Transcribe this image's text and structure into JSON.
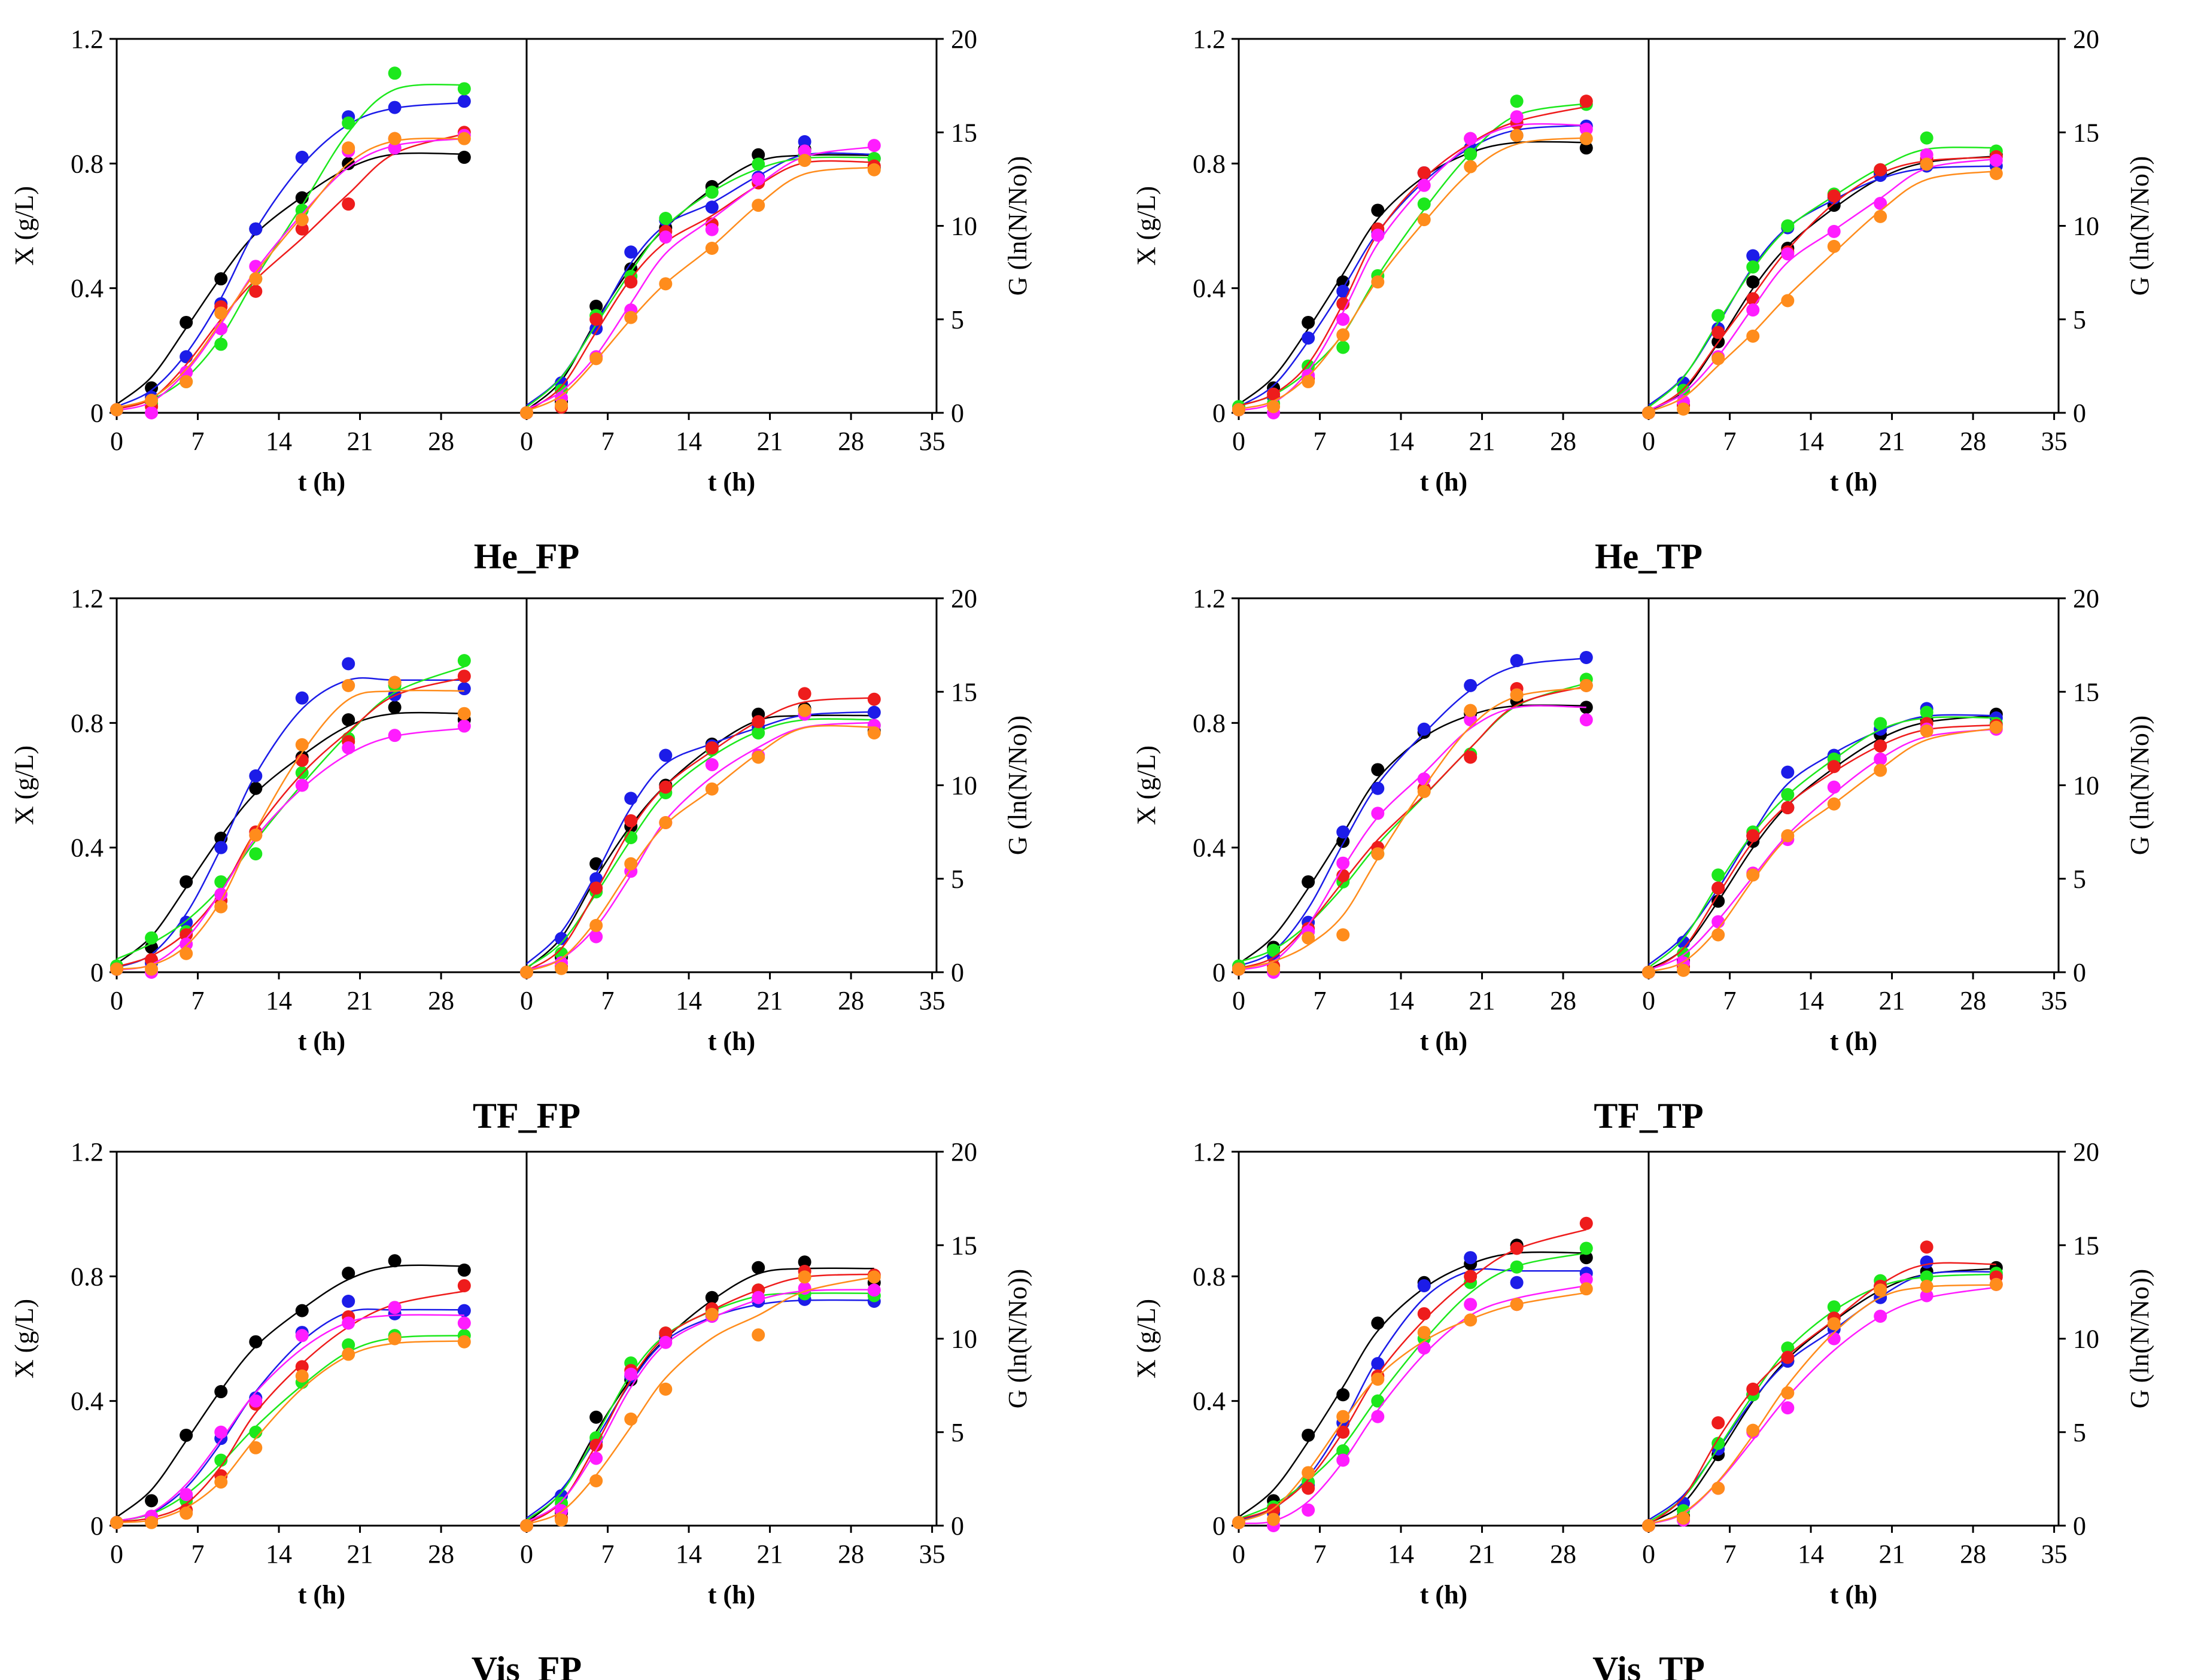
{
  "chart_data": {
    "type": "scatter",
    "layout": "3 rows x 2 columns of dual-panel plots",
    "x_ticks": [
      0,
      7,
      14,
      21,
      28,
      35
    ],
    "left_panel": {
      "xlabel": "t (h)",
      "ylabel": "X (g/L)",
      "ylim": [
        0,
        1.2
      ],
      "y_ticks": [
        "0",
        "0.4",
        "0.8",
        "1.2"
      ],
      "xlim": [
        0,
        35
      ]
    },
    "right_panel": {
      "xlabel": "t (h)",
      "ylabel": "G (ln(N/No))",
      "ylim": [
        0,
        20
      ],
      "y_ticks": [
        "0",
        "5",
        "10",
        "15",
        "20"
      ],
      "xlim": [
        0,
        35
      ]
    },
    "series_colors": {
      "red": "#ee1c1c",
      "green": "#1ce81c",
      "blue": "#1c1ce8",
      "magenta": "#ff1cff",
      "orange": "#ff8c1c",
      "black": "#000000"
    },
    "times": [
      0,
      3,
      6,
      9,
      12,
      16,
      20,
      24,
      30
    ],
    "panels": [
      {
        "title": "He_FP",
        "X": {
          "black": [
            0.01,
            0.08,
            0.29,
            0.43,
            0.59,
            0.69,
            0.8,
            0.85,
            0.82
          ],
          "blue": [
            0.01,
            0.05,
            0.18,
            0.35,
            0.59,
            0.82,
            0.95,
            0.98,
            1.0
          ],
          "green": [
            0.01,
            0.03,
            0.1,
            0.22,
            0.43,
            0.65,
            0.93,
            1.09,
            1.04
          ],
          "red": [
            0.01,
            0.02,
            0.13,
            0.34,
            0.39,
            0.59,
            0.67,
            0.88,
            0.9
          ],
          "magenta": [
            0.01,
            0.0,
            0.13,
            0.27,
            0.47,
            0.62,
            0.84,
            0.85,
            0.89
          ],
          "orange": [
            0.01,
            0.04,
            0.1,
            0.32,
            0.43,
            0.62,
            0.85,
            0.88,
            0.88
          ]
        },
        "G": {
          "black": [
            0.0,
            0.6,
            5.7,
            7.7,
            9.9,
            12.1,
            13.8,
            14.1,
            13.1
          ],
          "blue": [
            0.0,
            1.6,
            4.5,
            8.6,
            10.3,
            11.0,
            12.6,
            14.5,
            13.6
          ],
          "green": [
            0.0,
            1.2,
            5.2,
            7.3,
            10.4,
            11.8,
            13.3,
            13.8,
            13.6
          ],
          "red": [
            0.0,
            0.3,
            5.0,
            7.0,
            9.7,
            10.1,
            12.3,
            14.0,
            13.2
          ],
          "magenta": [
            0.0,
            0.8,
            3.0,
            5.5,
            9.4,
            9.8,
            12.5,
            14.0,
            14.3
          ],
          "orange": [
            0.0,
            0.4,
            2.9,
            5.1,
            6.9,
            8.8,
            11.1,
            13.5,
            13.0
          ]
        }
      },
      {
        "title": "He_TP",
        "X": {
          "black": [
            0.01,
            0.08,
            0.29,
            0.42,
            0.65,
            0.77,
            0.84,
            0.89,
            0.85
          ],
          "blue": [
            0.01,
            0.05,
            0.24,
            0.39,
            0.58,
            0.77,
            0.85,
            0.93,
            0.92
          ],
          "green": [
            0.02,
            0.03,
            0.15,
            0.21,
            0.44,
            0.67,
            0.83,
            1.0,
            0.99
          ],
          "red": [
            0.01,
            0.06,
            0.11,
            0.35,
            0.59,
            0.77,
            0.88,
            0.93,
            1.0
          ],
          "magenta": [
            0.01,
            0.0,
            0.12,
            0.3,
            0.57,
            0.73,
            0.88,
            0.95,
            0.91
          ],
          "orange": [
            0.01,
            0.02,
            0.1,
            0.25,
            0.42,
            0.62,
            0.79,
            0.89,
            0.88
          ]
        },
        "G": {
          "black": [
            0.0,
            0.4,
            3.8,
            7.0,
            8.8,
            11.1,
            12.8,
            13.5,
            13.8
          ],
          "blue": [
            0.0,
            1.6,
            4.5,
            8.4,
            9.9,
            11.5,
            12.7,
            13.2,
            13.2
          ],
          "green": [
            0.0,
            1.2,
            5.2,
            7.8,
            10.0,
            11.7,
            13.0,
            14.7,
            14.0
          ],
          "red": [
            0.0,
            0.4,
            4.3,
            6.1,
            8.6,
            11.6,
            13.0,
            13.6,
            13.7
          ],
          "magenta": [
            0.0,
            0.6,
            3.0,
            5.5,
            8.5,
            9.7,
            11.2,
            13.8,
            13.5
          ],
          "orange": [
            0.0,
            0.2,
            2.9,
            4.1,
            6.0,
            8.9,
            10.5,
            13.3,
            12.8
          ]
        }
      },
      {
        "title": "TF_FP",
        "X": {
          "black": [
            0.01,
            0.08,
            0.29,
            0.43,
            0.59,
            0.69,
            0.81,
            0.85,
            0.81
          ],
          "blue": [
            0.01,
            0.03,
            0.16,
            0.4,
            0.63,
            0.88,
            0.99,
            0.89,
            0.91
          ],
          "green": [
            0.02,
            0.11,
            0.13,
            0.29,
            0.38,
            0.64,
            0.75,
            0.92,
            1.0
          ],
          "red": [
            0.01,
            0.04,
            0.12,
            0.23,
            0.45,
            0.68,
            0.74,
            0.93,
            0.95
          ],
          "magenta": [
            0.01,
            0.0,
            0.09,
            0.25,
            0.44,
            0.6,
            0.72,
            0.76,
            0.79
          ],
          "orange": [
            0.01,
            0.01,
            0.06,
            0.21,
            0.44,
            0.73,
            0.92,
            0.93,
            0.83
          ]
        },
        "G": {
          "black": [
            0.0,
            0.8,
            5.8,
            7.8,
            10.0,
            12.2,
            13.8,
            14.1,
            12.9
          ],
          "blue": [
            0.0,
            1.8,
            5.0,
            9.3,
            11.6,
            12.1,
            13.1,
            14.0,
            13.9
          ],
          "green": [
            0.0,
            1.0,
            4.3,
            7.2,
            9.6,
            11.9,
            12.8,
            14.0,
            13.2
          ],
          "red": [
            0.0,
            0.3,
            4.5,
            8.1,
            9.9,
            12.0,
            13.4,
            14.9,
            14.6
          ],
          "magenta": [
            0.0,
            0.5,
            1.9,
            5.4,
            8.0,
            11.1,
            11.6,
            13.8,
            13.2
          ],
          "orange": [
            0.0,
            0.2,
            2.5,
            5.8,
            8.0,
            9.8,
            11.5,
            14.0,
            12.8
          ]
        }
      },
      {
        "title": "TF_TP",
        "X": {
          "black": [
            0.01,
            0.08,
            0.29,
            0.42,
            0.65,
            0.77,
            0.83,
            0.87,
            0.85
          ],
          "blue": [
            0.01,
            0.05,
            0.16,
            0.45,
            0.59,
            0.78,
            0.92,
            1.0,
            1.01
          ],
          "green": [
            0.02,
            0.07,
            0.13,
            0.29,
            0.38,
            0.59,
            0.7,
            0.89,
            0.94
          ],
          "red": [
            0.01,
            0.02,
            0.14,
            0.31,
            0.4,
            0.59,
            0.69,
            0.91,
            0.92
          ],
          "magenta": [
            0.01,
            0.0,
            0.13,
            0.35,
            0.51,
            0.62,
            0.81,
            0.89,
            0.81
          ],
          "orange": [
            0.01,
            0.01,
            0.11,
            0.12,
            0.38,
            0.58,
            0.84,
            0.89,
            0.92
          ]
        },
        "G": {
          "black": [
            0.0,
            0.6,
            3.8,
            7.0,
            8.8,
            11.1,
            12.7,
            13.5,
            13.8
          ],
          "blue": [
            0.0,
            1.6,
            4.5,
            7.3,
            10.7,
            11.6,
            13.0,
            14.1,
            13.6
          ],
          "green": [
            0.0,
            1.0,
            5.2,
            7.5,
            9.5,
            11.4,
            13.3,
            13.9,
            13.3
          ],
          "red": [
            0.0,
            0.3,
            4.5,
            7.3,
            8.8,
            11.0,
            12.1,
            13.3,
            13.2
          ],
          "magenta": [
            0.0,
            0.5,
            2.7,
            5.3,
            7.1,
            9.9,
            11.4,
            13.0,
            13.0
          ],
          "orange": [
            0.0,
            0.1,
            2.0,
            5.2,
            7.3,
            9.0,
            10.8,
            12.9,
            13.1
          ]
        }
      },
      {
        "title": "Vis_FP",
        "X": {
          "black": [
            0.01,
            0.08,
            0.29,
            0.43,
            0.59,
            0.69,
            0.81,
            0.85,
            0.82
          ],
          "blue": [
            0.01,
            0.03,
            0.09,
            0.28,
            0.41,
            0.62,
            0.72,
            0.68,
            0.69
          ],
          "green": [
            0.01,
            0.03,
            0.08,
            0.21,
            0.3,
            0.46,
            0.58,
            0.61,
            0.61
          ],
          "red": [
            0.01,
            0.02,
            0.05,
            0.16,
            0.39,
            0.51,
            0.67,
            0.7,
            0.77
          ],
          "magenta": [
            0.01,
            0.03,
            0.1,
            0.3,
            0.4,
            0.61,
            0.65,
            0.7,
            0.65
          ],
          "orange": [
            0.01,
            0.01,
            0.04,
            0.14,
            0.25,
            0.48,
            0.55,
            0.6,
            0.59
          ]
        },
        "G": {
          "black": [
            0.0,
            0.7,
            5.8,
            7.8,
            10.0,
            12.2,
            13.8,
            14.1,
            13.0
          ],
          "blue": [
            0.0,
            1.6,
            4.5,
            8.0,
            10.2,
            11.2,
            12.0,
            12.1,
            12.0
          ],
          "green": [
            0.0,
            1.2,
            4.7,
            8.7,
            10.3,
            11.5,
            12.6,
            12.4,
            12.3
          ],
          "red": [
            0.0,
            0.4,
            4.3,
            8.3,
            10.3,
            11.6,
            12.6,
            13.6,
            13.4
          ],
          "magenta": [
            0.0,
            0.8,
            3.6,
            8.1,
            9.8,
            11.2,
            12.2,
            12.7,
            12.6
          ],
          "orange": [
            0.0,
            0.3,
            2.4,
            5.7,
            7.3,
            11.3,
            10.2,
            13.3,
            13.3
          ]
        }
      },
      {
        "title": "Vis_TP",
        "X": {
          "black": [
            0.01,
            0.08,
            0.29,
            0.42,
            0.65,
            0.78,
            0.84,
            0.9,
            0.86
          ],
          "blue": [
            0.01,
            0.04,
            0.13,
            0.33,
            0.52,
            0.77,
            0.86,
            0.78,
            0.81
          ],
          "green": [
            0.01,
            0.06,
            0.14,
            0.24,
            0.4,
            0.6,
            0.78,
            0.83,
            0.89
          ],
          "red": [
            0.01,
            0.05,
            0.12,
            0.3,
            0.48,
            0.68,
            0.8,
            0.89,
            0.97
          ],
          "magenta": [
            0.01,
            0.0,
            0.05,
            0.21,
            0.35,
            0.57,
            0.71,
            0.71,
            0.79
          ],
          "orange": [
            0.01,
            0.02,
            0.17,
            0.35,
            0.47,
            0.62,
            0.66,
            0.71,
            0.76
          ]
        },
        "G": {
          "black": [
            0.0,
            0.5,
            3.8,
            7.0,
            8.8,
            11.1,
            12.8,
            13.6,
            13.8
          ],
          "blue": [
            0.0,
            1.2,
            4.1,
            7.0,
            8.8,
            10.5,
            12.2,
            14.1,
            13.4
          ],
          "green": [
            0.0,
            0.8,
            4.4,
            7.0,
            9.5,
            11.7,
            13.1,
            13.3,
            13.5
          ],
          "red": [
            0.0,
            0.3,
            5.5,
            7.3,
            9.0,
            11.1,
            12.8,
            14.9,
            13.3
          ],
          "magenta": [
            0.0,
            0.3,
            2.0,
            5.0,
            6.3,
            10.0,
            11.2,
            12.3,
            12.9
          ],
          "orange": [
            0.0,
            0.4,
            2.0,
            5.1,
            7.1,
            10.8,
            12.6,
            12.8,
            12.9
          ]
        }
      }
    ]
  }
}
